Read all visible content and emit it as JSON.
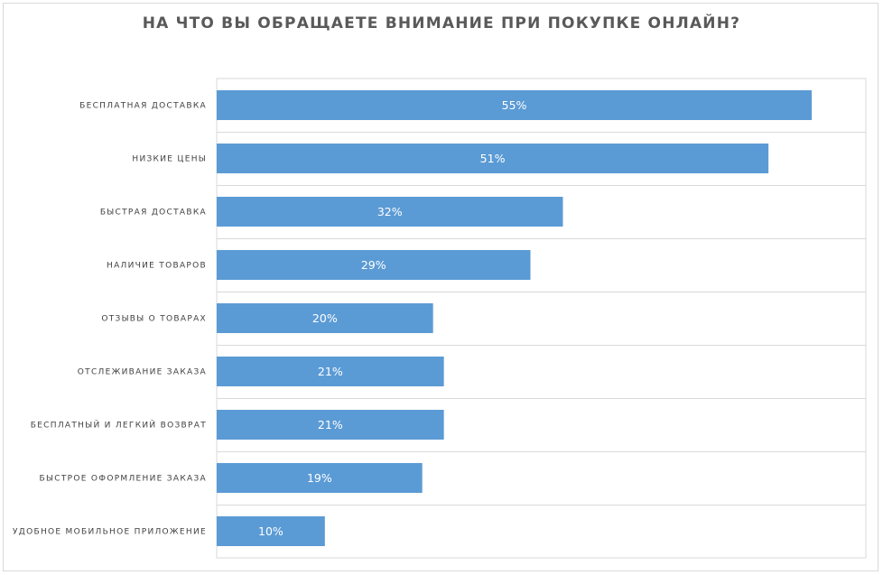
{
  "chart_data": {
    "type": "bar",
    "orientation": "horizontal",
    "title": "НА ЧТО ВЫ ОБРАЩАЕТЕ ВНИМАНИЕ ПРИ ПОКУПКЕ ОНЛАЙН?",
    "xlabel": "",
    "ylabel": "",
    "xlim": [
      0,
      60
    ],
    "grid": "horizontal separators between categories",
    "legend": "none",
    "bar_color": "#5b9bd5",
    "categories": [
      "БЕСПЛАТНАЯ ДОСТАВКА",
      "НИЗКИЕ ЦЕНЫ",
      "БЫСТРАЯ ДОСТАВКА",
      "НАЛИЧИЕ ТОВАРОВ",
      "ОТЗЫВЫ О ТОВАРАХ",
      "ОТСЛЕЖИВАНИЕ ЗАКАЗА",
      "БЕСПЛАТНЫЙ И ЛЕГКИЙ ВОЗВРАТ",
      "БЫСТРОЕ ОФОРМЛЕНИЕ ЗАКАЗА",
      "УДОБНОЕ МОБИЛЬНОЕ ПРИЛОЖЕНИЕ"
    ],
    "values": [
      55,
      51,
      32,
      29,
      20,
      21,
      21,
      19,
      10
    ],
    "data_labels": [
      "55%",
      "51%",
      "32%",
      "29%",
      "20%",
      "21%",
      "21%",
      "19%",
      "10%"
    ]
  }
}
